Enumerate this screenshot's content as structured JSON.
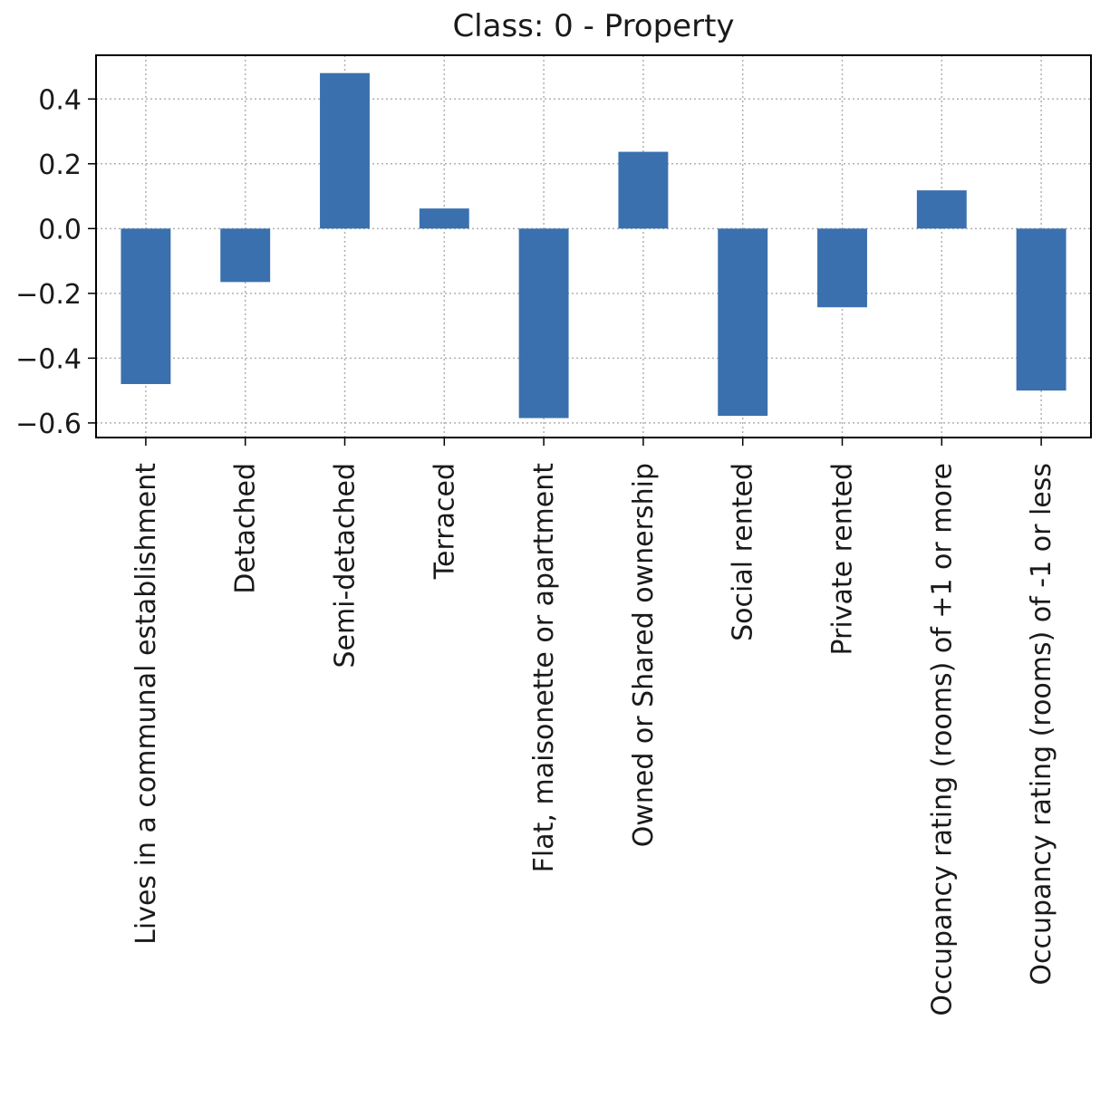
{
  "chart_data": {
    "type": "bar",
    "title": "Class: 0 - Property",
    "xlabel": "",
    "ylabel": "",
    "ylim": [
      -0.645,
      0.535
    ],
    "yticks": [
      0.4,
      0.2,
      0.0,
      -0.2,
      -0.4,
      -0.6
    ],
    "ytick_labels": [
      "0.4",
      "0.2",
      "0.0",
      "−0.2",
      "−0.4",
      "−0.6"
    ],
    "grid": true,
    "bar_color": "#3a70ae",
    "categories": [
      "Lives in a communal establishment",
      "Detached",
      "Semi-detached",
      "Terraced",
      "Flat, maisonette or apartment",
      "Owned or Shared ownership",
      "Social rented",
      "Private rented",
      "Occupancy rating (rooms) of +1 or more",
      "Occupancy rating (rooms) of -1 or less"
    ],
    "values": [
      -0.48,
      -0.165,
      0.48,
      0.062,
      -0.585,
      0.237,
      -0.578,
      -0.243,
      0.118,
      -0.5
    ]
  }
}
